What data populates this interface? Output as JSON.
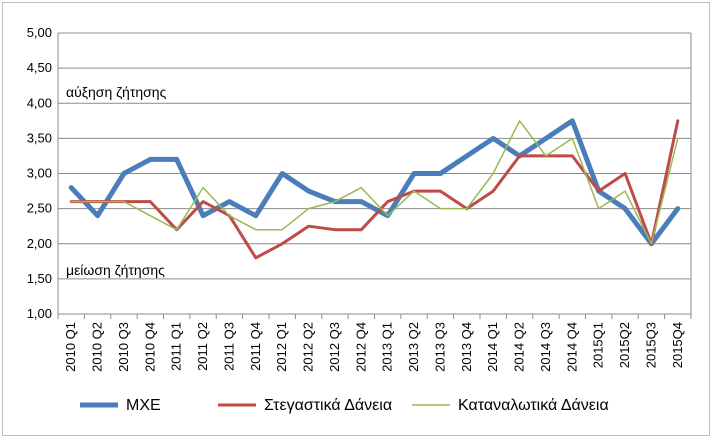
{
  "chart_data": {
    "type": "line",
    "categories": [
      "2010 Q1",
      "2010 Q2",
      "2010 Q3",
      "2010 Q4",
      "2011 Q1",
      "2011 Q2",
      "2011 Q3",
      "2011 Q4",
      "2012 Q1",
      "2012 Q2",
      "2012 Q3",
      "2012 Q4",
      "2013 Q1",
      "2013 Q2",
      "2013 Q3",
      "2013 Q4",
      "2014 Q1",
      "2014 Q2",
      "2014 Q3",
      "2014 Q4",
      "2015Q1",
      "2015Q2",
      "2015Q3",
      "2015Q4"
    ],
    "series": [
      {
        "name": "ΜΧΕ",
        "color": "#4a7ebb",
        "width": 5,
        "values": [
          2.8,
          2.4,
          3.0,
          3.2,
          3.2,
          2.4,
          2.6,
          2.4,
          3.0,
          2.75,
          2.6,
          2.6,
          2.4,
          3.0,
          3.0,
          3.25,
          3.5,
          3.25,
          3.5,
          3.75,
          2.75,
          2.5,
          2.0,
          2.5
        ]
      },
      {
        "name": "Στεγαστικά Δάνεια",
        "color": "#be4b48",
        "width": 3,
        "values": [
          2.6,
          2.6,
          2.6,
          2.6,
          2.2,
          2.6,
          2.4,
          1.8,
          2.0,
          2.25,
          2.2,
          2.2,
          2.6,
          2.75,
          2.75,
          2.5,
          2.75,
          3.25,
          3.25,
          3.25,
          2.75,
          3.0,
          2.0,
          3.75
        ]
      },
      {
        "name": "Καταναλωτικά Δάνεια",
        "color": "#98b954",
        "width": 1.5,
        "values": [
          2.6,
          2.6,
          2.6,
          2.4,
          2.2,
          2.8,
          2.4,
          2.2,
          2.2,
          2.5,
          2.6,
          2.8,
          2.4,
          2.75,
          2.5,
          2.5,
          3.0,
          3.75,
          3.25,
          3.5,
          2.5,
          2.75,
          2.0,
          3.5
        ]
      }
    ],
    "ylim": [
      1.0,
      5.0
    ],
    "yticks": [
      "1,00",
      "1,50",
      "2,00",
      "2,50",
      "3,00",
      "3,50",
      "4,00",
      "4,50",
      "5,00"
    ],
    "grid": true,
    "legend_position": "bottom",
    "annotations": {
      "upper": "αύξηση ζήτησης",
      "lower": "μείωση ζήτησης"
    }
  }
}
